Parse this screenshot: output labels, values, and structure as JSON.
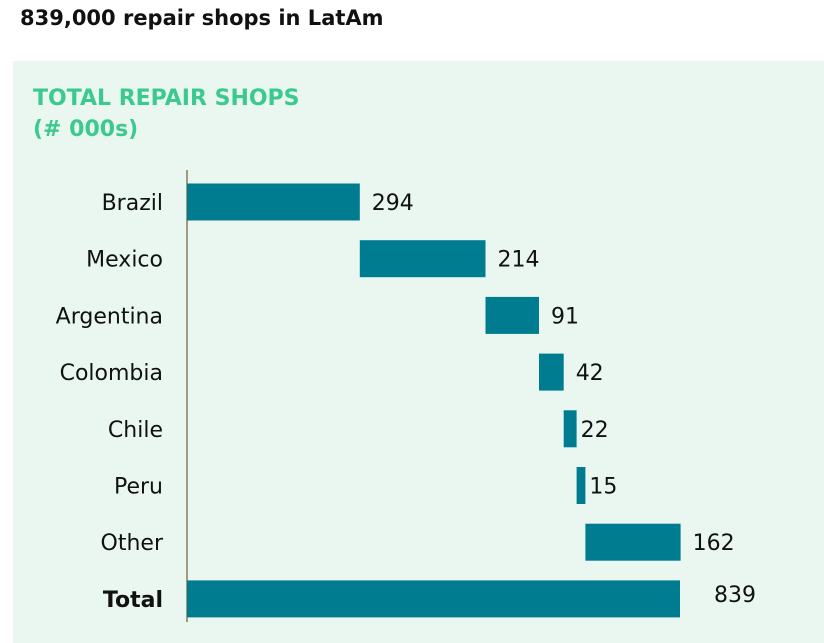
{
  "headline": "839,000 repair shops in LatAm",
  "chart_data": {
    "type": "bar",
    "subtype": "waterfall",
    "orientation": "horizontal",
    "title": "TOTAL REPAIR SHOPS",
    "subtitle": "(# 000s)",
    "categories": [
      "Brazil",
      "Mexico",
      "Argentina",
      "Colombia",
      "Chile",
      "Peru",
      "Other",
      "Total"
    ],
    "values": [
      294,
      214,
      91,
      42,
      22,
      15,
      162,
      839
    ],
    "total_index": 7,
    "xlim": [
      0,
      839
    ],
    "grid": false,
    "legend": "none"
  },
  "colors": {
    "bar": "#007c91",
    "title": "#3cc98f",
    "panel": "#e9f7f0",
    "axis": "#a09a7a"
  }
}
